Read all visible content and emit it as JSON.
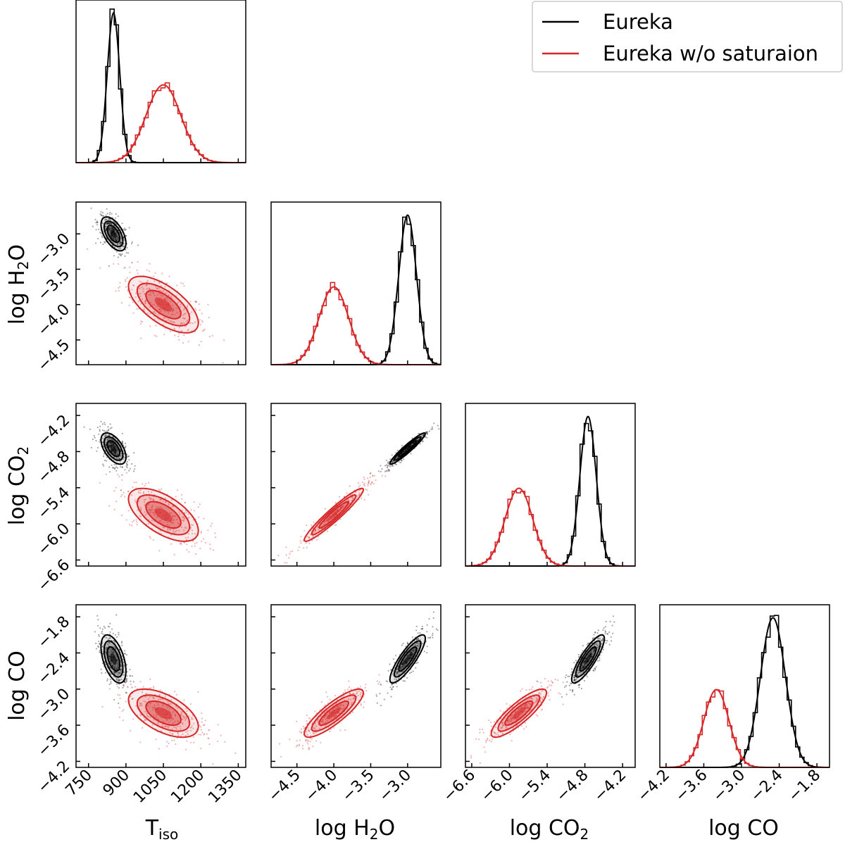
{
  "legend": {
    "entries": [
      {
        "label": "Eureka",
        "color": "#000000"
      },
      {
        "label": "Eureka w/o saturaion",
        "color": "#d62728"
      }
    ]
  },
  "axis_labels": {
    "T": {
      "main": "T",
      "sub": "iso"
    },
    "H2O": {
      "main": "log H",
      "sub": "2",
      "tail": "O"
    },
    "CO2": {
      "main": "log CO",
      "sub": "2",
      "tail": ""
    },
    "CO": {
      "main": "log CO",
      "sub": "",
      "tail": ""
    }
  },
  "chart_data": {
    "type": "scatter",
    "title": "",
    "plot_kind": "corner",
    "parameters": [
      "T_iso",
      "log H2O",
      "log CO2",
      "log CO"
    ],
    "axes": {
      "T": {
        "range": [
          700,
          1380
        ],
        "ticks": [
          750,
          900,
          1050,
          1200,
          1350
        ],
        "tick_labels": [
          "750",
          "900",
          "1050",
          "1200",
          "1350"
        ]
      },
      "H2O": {
        "range": [
          -4.85,
          -2.55
        ],
        "ticks": [
          -4.5,
          -4.0,
          -3.5,
          -3.0
        ],
        "tick_labels": [
          "−4.5",
          "−4.0",
          "−3.5",
          "−3.0"
        ]
      },
      "CO2": {
        "range": [
          -6.7,
          -4.0
        ],
        "ticks": [
          -6.6,
          -6.0,
          -5.4,
          -4.8,
          -4.2
        ],
        "tick_labels": [
          "−6.6",
          "−6.0",
          "−5.4",
          "−4.8",
          "−4.2"
        ]
      },
      "CO": {
        "range": [
          -4.3,
          -1.6
        ],
        "ticks": [
          -4.2,
          -3.6,
          -3.0,
          -2.4,
          -1.8
        ],
        "tick_labels": [
          "−4.2",
          "−3.6",
          "−3.0",
          "−2.4",
          "−1.8"
        ]
      }
    },
    "series": [
      {
        "name": "Eureka",
        "color": "#000000",
        "mean": {
          "T": 850,
          "H2O": -3.0,
          "CO2": -4.75,
          "CO": -2.5
        },
        "sd": {
          "T": 25,
          "H2O": 0.12,
          "CO2": 0.13,
          "CO": 0.2
        },
        "corr": {
          "T_H2O": -0.55,
          "T_CO2": -0.55,
          "T_CO": -0.5,
          "H2O_CO2": 0.95,
          "H2O_CO": 0.85,
          "CO2_CO": 0.85
        }
      },
      {
        "name": "Eureka w/o saturaion",
        "color": "#d62728",
        "mean": {
          "T": 1050,
          "H2O": -4.0,
          "CO2": -5.85,
          "CO": -3.4
        },
        "sd": {
          "T": 70,
          "H2O": 0.2,
          "CO2": 0.22,
          "CO": 0.2
        },
        "corr": {
          "T_H2O": -0.65,
          "T_CO2": -0.6,
          "T_CO": -0.55,
          "H2O_CO2": 0.95,
          "H2O_CO": 0.85,
          "CO2_CO": 0.85
        }
      }
    ],
    "legend_position": "top-right"
  }
}
